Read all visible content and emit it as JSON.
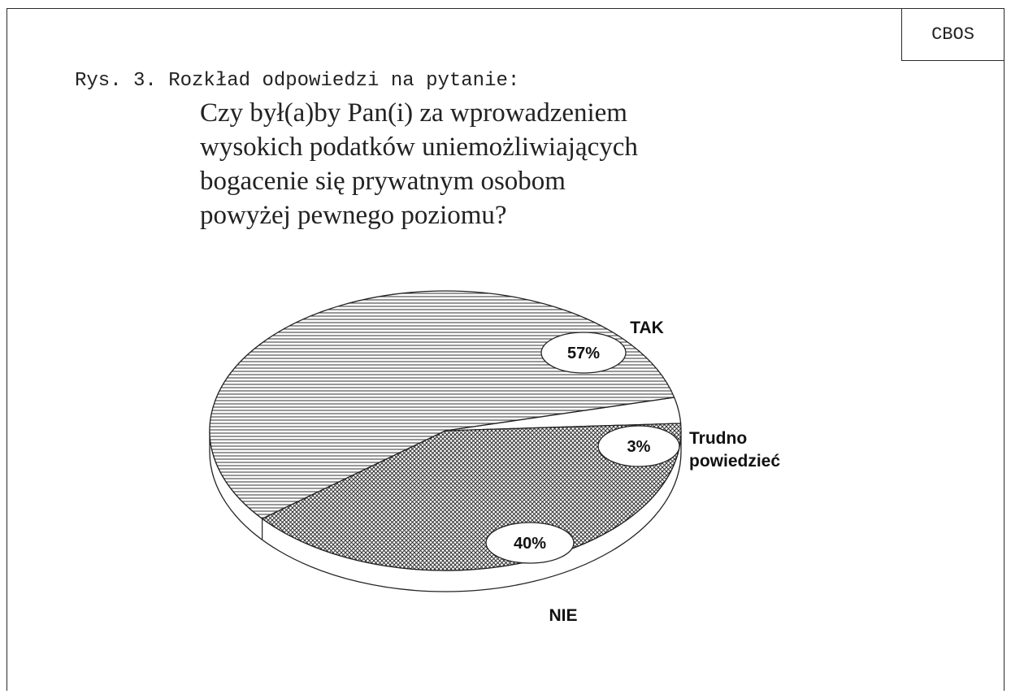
{
  "header": {
    "org": "CBOS"
  },
  "figure": {
    "label": "Rys. 3. Rozkład odpowiedzi na pytanie:",
    "question_lines": [
      "Czy był(a)by Pan(i) za wprowadzeniem",
      "wysokich podatków uniemożliwiających",
      "bogacenie się prywatnym osobom",
      "powyżej pewnego poziomu?"
    ]
  },
  "chart_data": {
    "type": "pie",
    "title": "",
    "slices": [
      {
        "label": "TAK",
        "value": 57,
        "display": "57%"
      },
      {
        "label": "Trudno powiedzieć",
        "label_lines": [
          "Trudno",
          "powiedzieć"
        ],
        "value": 3,
        "display": "3%"
      },
      {
        "label": "NIE",
        "value": 40,
        "display": "40%"
      }
    ],
    "unit": "%",
    "style": "3d-hatched"
  }
}
